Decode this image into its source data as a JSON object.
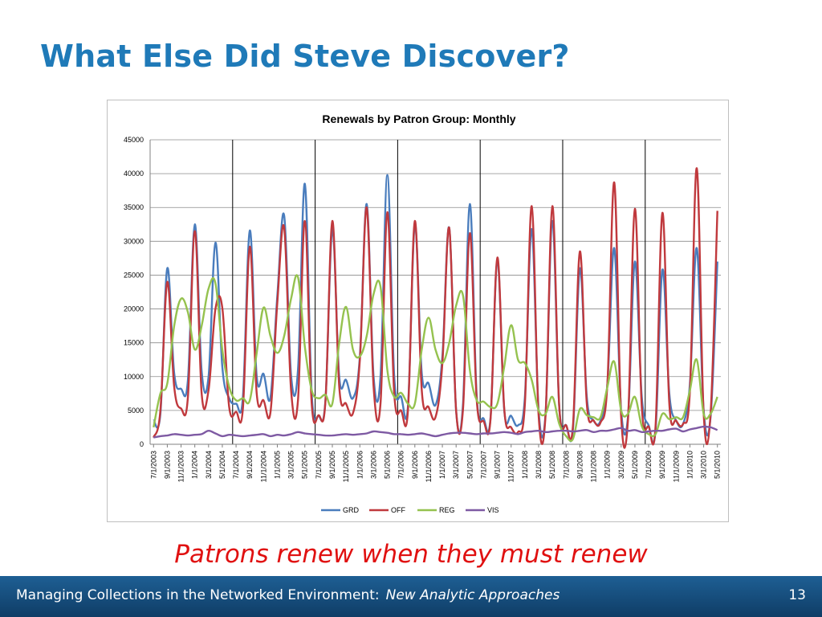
{
  "slide": {
    "title": "What Else Did Steve Discover?",
    "caption": "Patrons renew when they must renew",
    "footer_main": "Managing Collections in the Networked Environment:",
    "footer_sub": "New Analytic Approaches",
    "page_number": "13"
  },
  "colors": {
    "title": "#1f7ab8",
    "caption": "#e01010",
    "footer": "#1a5487"
  },
  "chart_data": {
    "type": "line",
    "title": "Renewals by Patron Group: Monthly",
    "xlabel": "",
    "ylabel": "",
    "ylim": [
      0,
      45000
    ],
    "yticks": [
      0,
      5000,
      10000,
      15000,
      20000,
      25000,
      30000,
      35000,
      40000,
      45000
    ],
    "grid": true,
    "legend_position": "bottom",
    "x_tick_labels": [
      "7/1/2003",
      "9/1/2003",
      "11/1/2003",
      "1/1/2004",
      "3/1/2004",
      "5/1/2004",
      "7/1/2004",
      "9/1/2004",
      "11/1/2004",
      "1/1/2005",
      "3/1/2005",
      "5/1/2005",
      "7/1/2005",
      "9/1/2005",
      "11/1/2005",
      "1/1/2006",
      "3/1/2006",
      "5/1/2006",
      "7/1/2006",
      "9/1/2006",
      "11/1/2006",
      "1/1/2007",
      "3/1/2007",
      "5/1/2007",
      "7/1/2007",
      "9/1/2007",
      "11/1/2007",
      "1/1/2008",
      "3/1/2008",
      "5/1/2008",
      "7/1/2008",
      "9/1/2008",
      "11/1/2008",
      "1/1/2009",
      "3/1/2009",
      "5/1/2009",
      "7/1/2009",
      "9/1/2009",
      "11/1/2009",
      "1/1/2010",
      "3/1/2010",
      "5/1/2010"
    ],
    "x": [
      "7/1/2003",
      "8/1/2003",
      "9/1/2003",
      "10/1/2003",
      "11/1/2003",
      "12/1/2003",
      "1/1/2004",
      "2/1/2004",
      "3/1/2004",
      "4/1/2004",
      "5/1/2004",
      "6/1/2004",
      "7/1/2004",
      "8/1/2004",
      "9/1/2004",
      "10/1/2004",
      "11/1/2004",
      "12/1/2004",
      "1/1/2005",
      "2/1/2005",
      "3/1/2005",
      "4/1/2005",
      "5/1/2005",
      "6/1/2005",
      "7/1/2005",
      "8/1/2005",
      "9/1/2005",
      "10/1/2005",
      "11/1/2005",
      "12/1/2005",
      "1/1/2006",
      "2/1/2006",
      "3/1/2006",
      "4/1/2006",
      "5/1/2006",
      "6/1/2006",
      "7/1/2006",
      "8/1/2006",
      "9/1/2006",
      "10/1/2006",
      "11/1/2006",
      "12/1/2006",
      "1/1/2007",
      "2/1/2007",
      "3/1/2007",
      "4/1/2007",
      "5/1/2007",
      "6/1/2007",
      "7/1/2007",
      "8/1/2007",
      "9/1/2007",
      "10/1/2007",
      "11/1/2007",
      "12/1/2007",
      "1/1/2008",
      "2/1/2008",
      "3/1/2008",
      "4/1/2008",
      "5/1/2008",
      "6/1/2008",
      "7/1/2008",
      "8/1/2008",
      "9/1/2008",
      "10/1/2008",
      "11/1/2008",
      "12/1/2008",
      "1/1/2009",
      "2/1/2009",
      "3/1/2009",
      "4/1/2009",
      "5/1/2009",
      "6/1/2009",
      "7/1/2009",
      "8/1/2009",
      "9/1/2009",
      "10/1/2009",
      "11/1/2009",
      "12/1/2009",
      "1/1/2010",
      "2/1/2010",
      "3/1/2010",
      "4/1/2010",
      "5/1/2010"
    ],
    "year_separators": [
      "7/1/2004",
      "7/1/2005",
      "7/1/2006",
      "7/1/2007",
      "7/1/2008",
      "7/1/2009"
    ],
    "series": [
      {
        "name": "GRD",
        "color": "#4a7dbd",
        "values": [
          3500,
          4500,
          26000,
          10500,
          8200,
          9500,
          32500,
          10800,
          10000,
          29800,
          11500,
          6800,
          6000,
          7000,
          31600,
          10000,
          10400,
          6900,
          22000,
          33800,
          10200,
          11000,
          38500,
          7500,
          4200,
          6500,
          31800,
          10000,
          9500,
          6800,
          13000,
          35500,
          10000,
          10000,
          39800,
          10000,
          7000,
          5600,
          32500,
          10500,
          9000,
          5800,
          13000,
          32000,
          5000,
          6000,
          35500,
          7000,
          3800,
          3800,
          27200,
          5000,
          4200,
          2800,
          7000,
          31800,
          5000,
          4500,
          33000,
          5500,
          2800,
          2300,
          26000,
          7000,
          3500,
          3500,
          9000,
          29000,
          5000,
          4200,
          27000,
          7000,
          2800,
          2000,
          25800,
          7500,
          3500,
          3000,
          9000,
          29000,
          5000,
          4000,
          27000
        ]
      },
      {
        "name": "OFF",
        "color": "#c0393d",
        "values": [
          1000,
          5000,
          24000,
          8500,
          5300,
          7000,
          31500,
          7500,
          8000,
          20000,
          20200,
          5500,
          4800,
          5300,
          29200,
          7500,
          6500,
          4700,
          21000,
          32000,
          8000,
          6500,
          33000,
          6000,
          4300,
          6300,
          33000,
          8500,
          6000,
          4600,
          12500,
          35000,
          8500,
          6000,
          34300,
          7500,
          5000,
          5000,
          33000,
          8000,
          5500,
          4000,
          12000,
          32000,
          5000,
          5200,
          31200,
          6500,
          3400,
          3600,
          27600,
          5200,
          2500,
          1800,
          6000,
          35200,
          4200,
          4200,
          35200,
          5500,
          2800,
          2800,
          28500,
          6000,
          3500,
          3200,
          9000,
          38700,
          4000,
          3800,
          34800,
          5500,
          2600,
          2600,
          34200,
          6000,
          3500,
          3000,
          8000,
          40800,
          4500,
          4500,
          34500
        ]
      },
      {
        "name": "REG",
        "color": "#95c24f",
        "values": [
          2500,
          7500,
          9000,
          17500,
          21500,
          19500,
          14000,
          17500,
          23000,
          23800,
          14000,
          8500,
          6500,
          6800,
          6500,
          13500,
          20200,
          16000,
          13500,
          16000,
          21500,
          24700,
          14500,
          8000,
          6800,
          7300,
          6000,
          15000,
          20300,
          14000,
          13000,
          16000,
          22200,
          23300,
          11000,
          7000,
          7600,
          6000,
          6000,
          14000,
          18700,
          14000,
          12000,
          15000,
          20500,
          22000,
          11000,
          6500,
          6300,
          5500,
          6000,
          11500,
          17600,
          12500,
          12000,
          9500,
          5000,
          4500,
          7000,
          3000,
          1200,
          800,
          5200,
          4300,
          4000,
          4000,
          8500,
          12200,
          5000,
          4500,
          7000,
          2700,
          1500,
          1500,
          4500,
          3700,
          4000,
          4000,
          8000,
          12500,
          4500,
          4500,
          7000
        ]
      },
      {
        "name": "VIS",
        "color": "#7e5aa3",
        "values": [
          1000,
          1200,
          1300,
          1500,
          1400,
          1300,
          1400,
          1500,
          2000,
          1600,
          1200,
          1400,
          1300,
          1200,
          1300,
          1400,
          1500,
          1200,
          1400,
          1300,
          1500,
          1800,
          1600,
          1500,
          1400,
          1300,
          1300,
          1400,
          1500,
          1400,
          1500,
          1600,
          1900,
          1800,
          1700,
          1500,
          1500,
          1400,
          1500,
          1600,
          1400,
          1200,
          1400,
          1600,
          1700,
          1700,
          1600,
          1500,
          1600,
          1600,
          1700,
          1800,
          1700,
          1500,
          1800,
          1900,
          2000,
          1800,
          1900,
          2000,
          2000,
          1900,
          2000,
          2100,
          1800,
          2000,
          2000,
          2200,
          2400,
          2000,
          2100,
          1800,
          1900,
          2000,
          2000,
          2200,
          2300,
          1900,
          2200,
          2400,
          2600,
          2500,
          2100
        ]
      }
    ]
  }
}
